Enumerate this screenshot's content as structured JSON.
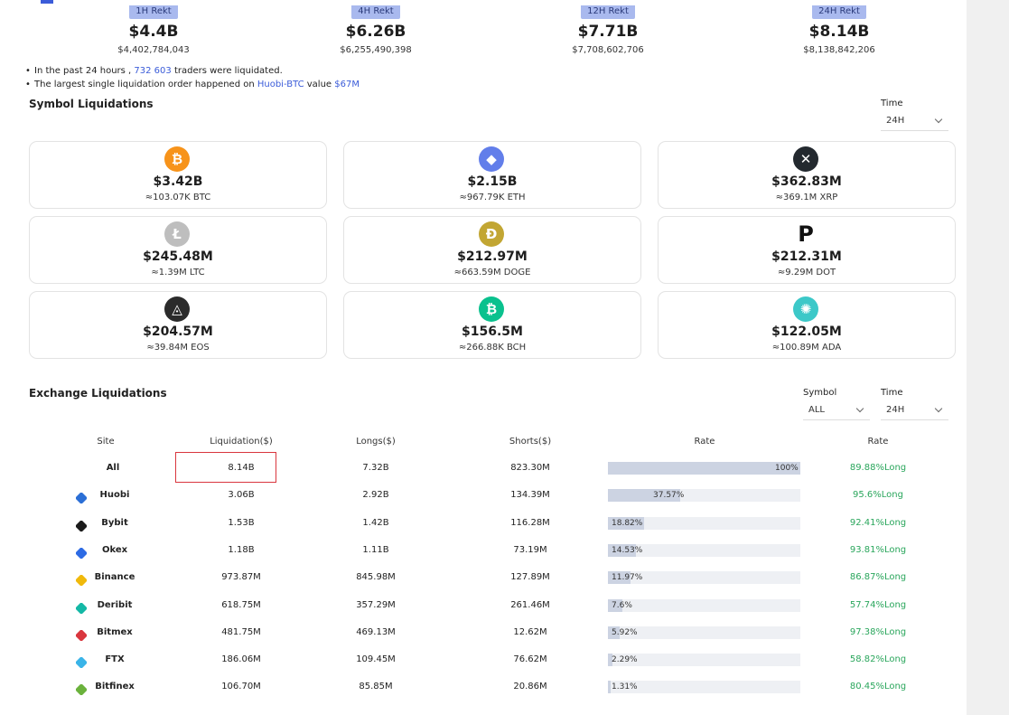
{
  "rekt": [
    {
      "tag": "1H Rekt",
      "value": "$4.4B",
      "exact": "$4,402,784,043"
    },
    {
      "tag": "4H Rekt",
      "value": "$6.26B",
      "exact": "$6,255,490,398"
    },
    {
      "tag": "12H Rekt",
      "value": "$7.71B",
      "exact": "$7,708,602,706"
    },
    {
      "tag": "24H Rekt",
      "value": "$8.14B",
      "exact": "$8,138,842,206"
    }
  ],
  "notes": {
    "line1_pre": "In the past 24 hours ,",
    "line1_count": "732 603",
    "line1_post": "traders were liquidated.",
    "line2_pre": "The largest single liquidation order happened on",
    "line2_pair": "Huobi-BTC",
    "line2_mid": "value",
    "line2_value": "$67M"
  },
  "symbol_section": {
    "title": "Symbol Liquidations",
    "time_label": "Time",
    "time_value": "24H"
  },
  "symbols": [
    {
      "icon": "bitcoin-icon",
      "glyph": "₿",
      "color": "#f7931a",
      "amount": "$3.42B",
      "equiv": "≈103.07K BTC"
    },
    {
      "icon": "ethereum-icon",
      "glyph": "◆",
      "color": "#627eea",
      "amount": "$2.15B",
      "equiv": "≈967.79K ETH"
    },
    {
      "icon": "xrp-icon",
      "glyph": "✕",
      "color": "#23292f",
      "amount": "$362.83M",
      "equiv": "≈369.1M XRP"
    },
    {
      "icon": "litecoin-icon",
      "glyph": "Ł",
      "color": "#bebebe",
      "amount": "$245.48M",
      "equiv": "≈1.39M LTC"
    },
    {
      "icon": "dogecoin-icon",
      "glyph": "Ð",
      "color": "#c2a633",
      "amount": "$212.97M",
      "equiv": "≈663.59M DOGE"
    },
    {
      "icon": "polkadot-icon",
      "glyph": "P",
      "color": "#ffffff",
      "amount": "$212.31M",
      "equiv": "≈9.29M DOT"
    },
    {
      "icon": "eos-icon",
      "glyph": "◬",
      "color": "#2b2b2b",
      "amount": "$204.57M",
      "equiv": "≈39.84M EOS"
    },
    {
      "icon": "bitcoin-cash-icon",
      "glyph": "₿",
      "color": "#0ac18e",
      "amount": "$156.5M",
      "equiv": "≈266.88K BCH"
    },
    {
      "icon": "cardano-icon",
      "glyph": "✺",
      "color": "#3cc8c8",
      "amount": "$122.05M",
      "equiv": "≈100.89M ADA"
    }
  ],
  "exchange_section": {
    "title": "Exchange Liquidations",
    "symbol_label": "Symbol",
    "symbol_value": "ALL",
    "time_label": "Time",
    "time_value": "24H"
  },
  "table_headers": {
    "site": "Site",
    "liquidation": "Liquidation($)",
    "longs": "Longs($)",
    "shorts": "Shorts($)",
    "rate_bar": "Rate",
    "rate": "Rate"
  },
  "exchanges": [
    {
      "site": "All",
      "icon": "",
      "icon_color": "",
      "liquidation": "8.14B",
      "longs": "7.32B",
      "shorts": "823.30M",
      "share": 1.0,
      "share_label": "100%",
      "rate": "89.88%Long"
    },
    {
      "site": "Huobi",
      "icon": "huobi-icon",
      "icon_color": "#2b6fd6",
      "liquidation": "3.06B",
      "longs": "2.92B",
      "shorts": "134.39M",
      "share": 0.3757,
      "share_label": "37.57%",
      "rate": "95.6%Long"
    },
    {
      "site": "Bybit",
      "icon": "bybit-icon",
      "icon_color": "#1b1b1b",
      "liquidation": "1.53B",
      "longs": "1.42B",
      "shorts": "116.28M",
      "share": 0.1882,
      "share_label": "18.82%",
      "rate": "92.41%Long"
    },
    {
      "site": "Okex",
      "icon": "okex-icon",
      "icon_color": "#2d6be4",
      "liquidation": "1.18B",
      "longs": "1.11B",
      "shorts": "73.19M",
      "share": 0.1453,
      "share_label": "14.53%",
      "rate": "93.81%Long"
    },
    {
      "site": "Binance",
      "icon": "binance-icon",
      "icon_color": "#f0b90b",
      "liquidation": "973.87M",
      "longs": "845.98M",
      "shorts": "127.89M",
      "share": 0.1197,
      "share_label": "11.97%",
      "rate": "86.87%Long"
    },
    {
      "site": "Deribit",
      "icon": "deribit-icon",
      "icon_color": "#14b8a6",
      "liquidation": "618.75M",
      "longs": "357.29M",
      "shorts": "261.46M",
      "share": 0.076,
      "share_label": "7.6%",
      "rate": "57.74%Long"
    },
    {
      "site": "Bitmex",
      "icon": "bitmex-icon",
      "icon_color": "#d9363e",
      "liquidation": "481.75M",
      "longs": "469.13M",
      "shorts": "12.62M",
      "share": 0.0592,
      "share_label": "5.92%",
      "rate": "97.38%Long"
    },
    {
      "site": "FTX",
      "icon": "ftx-icon",
      "icon_color": "#3ab4e8",
      "liquidation": "186.06M",
      "longs": "109.45M",
      "shorts": "76.62M",
      "share": 0.0229,
      "share_label": "2.29%",
      "rate": "58.82%Long"
    },
    {
      "site": "Bitfinex",
      "icon": "bitfinex-icon",
      "icon_color": "#6bb23c",
      "liquidation": "106.70M",
      "longs": "85.85M",
      "shorts": "20.86M",
      "share": 0.0131,
      "share_label": "1.31%",
      "rate": "80.45%Long"
    }
  ]
}
